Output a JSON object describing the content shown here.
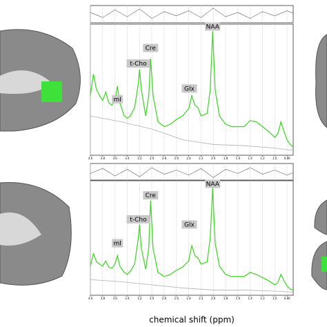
{
  "x_label": "chemical shift (ppm)",
  "chart_data": [
    {
      "type": "line",
      "xlim": [
        4.0,
        0.7
      ],
      "ylim": [
        0,
        1.1
      ],
      "xticks": [
        {
          "value": 4.0,
          "label": "4.0"
        },
        3.8,
        3.6,
        3.4,
        3.2,
        {
          "value": 3.0,
          "label": "3.0"
        },
        2.8,
        2.6,
        2.4,
        2.2,
        {
          "value": 2.0,
          "label": "2.0"
        },
        1.8,
        1.6,
        1.4,
        1.2,
        {
          "value": 1.0,
          "label": "1.0"
        },
        {
          "value": 0.8,
          "label": "0.80"
        }
      ],
      "grid": true,
      "series": [
        {
          "color": "#44d62c",
          "x": [
            4.0,
            3.95,
            3.9,
            3.85,
            3.8,
            3.75,
            3.7,
            3.65,
            3.6,
            3.56,
            3.52,
            3.45,
            3.4,
            3.35,
            3.28,
            3.22,
            3.2,
            3.17,
            3.1,
            3.05,
            3.02,
            2.98,
            2.9,
            2.8,
            2.7,
            2.6,
            2.5,
            2.4,
            2.35,
            2.3,
            2.25,
            2.2,
            2.1,
            2.05,
            2.01,
            1.97,
            1.9,
            1.8,
            1.7,
            1.6,
            1.5,
            1.4,
            1.3,
            1.2,
            1.1,
            1.0,
            0.95,
            0.9,
            0.85,
            0.8,
            0.75,
            0.7
          ],
          "values": [
            0.5,
            0.68,
            0.55,
            0.5,
            0.46,
            0.53,
            0.44,
            0.42,
            0.46,
            0.58,
            0.44,
            0.33,
            0.31,
            0.33,
            0.4,
            0.6,
            0.72,
            0.55,
            0.33,
            0.5,
            0.81,
            0.5,
            0.28,
            0.24,
            0.26,
            0.3,
            0.33,
            0.39,
            0.5,
            0.42,
            0.4,
            0.33,
            0.35,
            0.55,
            1.04,
            0.55,
            0.33,
            0.26,
            0.24,
            0.24,
            0.24,
            0.29,
            0.28,
            0.24,
            0.2,
            0.15,
            0.18,
            0.28,
            0.2,
            0.13,
            0.09,
            0.07
          ]
        },
        {
          "color": "#b0b0b0",
          "x": [
            4.0,
            3.5,
            3.0,
            2.5,
            2.0,
            1.5,
            1.0,
            0.7
          ],
          "values": [
            0.33,
            0.28,
            0.22,
            0.13,
            0.09,
            0.08,
            0.06,
            0.04
          ]
        }
      ],
      "residual": {
        "color": "#777777",
        "ylim": [
          -1,
          1
        ],
        "x": [
          4.0,
          3.8,
          3.6,
          3.4,
          3.2,
          3.0,
          2.8,
          2.6,
          2.4,
          2.2,
          2.0,
          1.8,
          1.6,
          1.4,
          1.2,
          1.0,
          0.8,
          0.7
        ],
        "values": [
          0.2,
          -0.4,
          0.5,
          -0.3,
          0.6,
          -0.5,
          0.3,
          -0.2,
          0.4,
          -0.4,
          0.7,
          -0.3,
          0.2,
          -0.5,
          0.3,
          -0.2,
          0.4,
          0.1
        ]
      },
      "annotations": [
        {
          "text": "mI",
          "x": 3.56,
          "y": 0.47
        },
        {
          "text": "t-Cho",
          "x": 3.22,
          "y": 0.77
        },
        {
          "text": "Cre",
          "x": 3.02,
          "y": 0.9
        },
        {
          "text": "Glx",
          "x": 2.39,
          "y": 0.56
        },
        {
          "text": "NAA",
          "x": 2.01,
          "y": 1.08
        }
      ]
    },
    {
      "type": "line",
      "xlim": [
        4.0,
        0.7
      ],
      "ylim": [
        0,
        1.1
      ],
      "xticks": [
        {
          "value": 4.0,
          "label": "4.0"
        },
        3.8,
        3.6,
        3.4,
        3.2,
        {
          "value": 3.0,
          "label": "3.0"
        },
        2.8,
        2.6,
        2.4,
        2.2,
        {
          "value": 2.0,
          "label": "2.0"
        },
        1.8,
        1.6,
        1.4,
        1.2,
        {
          "value": 1.0,
          "label": "1.0"
        },
        {
          "value": 0.8,
          "label": "0.80"
        }
      ],
      "grid": true,
      "series": [
        {
          "color": "#44d62c",
          "x": [
            4.0,
            3.95,
            3.9,
            3.85,
            3.8,
            3.75,
            3.7,
            3.65,
            3.6,
            3.56,
            3.52,
            3.45,
            3.4,
            3.35,
            3.28,
            3.22,
            3.2,
            3.17,
            3.1,
            3.05,
            3.02,
            2.98,
            2.9,
            2.8,
            2.7,
            2.6,
            2.5,
            2.4,
            2.35,
            2.3,
            2.25,
            2.2,
            2.1,
            2.05,
            2.01,
            1.97,
            1.9,
            1.8,
            1.7,
            1.6,
            1.5,
            1.4,
            1.3,
            1.2,
            1.1,
            1.0,
            0.95,
            0.9,
            0.85,
            0.8,
            0.75,
            0.7
          ],
          "values": [
            0.28,
            0.4,
            0.32,
            0.3,
            0.28,
            0.33,
            0.27,
            0.26,
            0.3,
            0.38,
            0.28,
            0.22,
            0.2,
            0.23,
            0.3,
            0.55,
            0.68,
            0.45,
            0.25,
            0.45,
            0.91,
            0.45,
            0.22,
            0.18,
            0.2,
            0.24,
            0.27,
            0.33,
            0.48,
            0.38,
            0.36,
            0.3,
            0.32,
            0.55,
            1.03,
            0.5,
            0.28,
            0.2,
            0.18,
            0.18,
            0.18,
            0.22,
            0.2,
            0.17,
            0.14,
            0.1,
            0.12,
            0.2,
            0.14,
            0.09,
            0.06,
            0.05
          ]
        },
        {
          "color": "#b0b0b0",
          "x": [
            4.0,
            3.5,
            3.0,
            2.5,
            2.0,
            1.5,
            1.0,
            0.7
          ],
          "values": [
            0.15,
            0.13,
            0.1,
            0.07,
            0.05,
            0.05,
            0.04,
            0.03
          ]
        }
      ],
      "residual": {
        "color": "#777777",
        "ylim": [
          -1,
          1
        ],
        "x": [
          4.0,
          3.8,
          3.6,
          3.4,
          3.2,
          3.0,
          2.8,
          2.6,
          2.4,
          2.2,
          2.0,
          1.8,
          1.6,
          1.4,
          1.2,
          1.0,
          0.8,
          0.7
        ],
        "values": [
          -0.2,
          0.4,
          -0.5,
          0.3,
          -0.6,
          0.5,
          -0.3,
          0.2,
          -0.4,
          0.4,
          -0.7,
          0.3,
          -0.2,
          0.5,
          -0.3,
          0.2,
          -0.4,
          -0.1
        ]
      },
      "annotations": [
        {
          "text": "mI",
          "x": 3.56,
          "y": 0.5
        },
        {
          "text": "t-Cho",
          "x": 3.22,
          "y": 0.73
        },
        {
          "text": "Cre",
          "x": 3.02,
          "y": 0.96
        },
        {
          "text": "Glx",
          "x": 2.39,
          "y": 0.68
        },
        {
          "text": "NAA",
          "x": 2.01,
          "y": 1.07
        }
      ]
    }
  ]
}
